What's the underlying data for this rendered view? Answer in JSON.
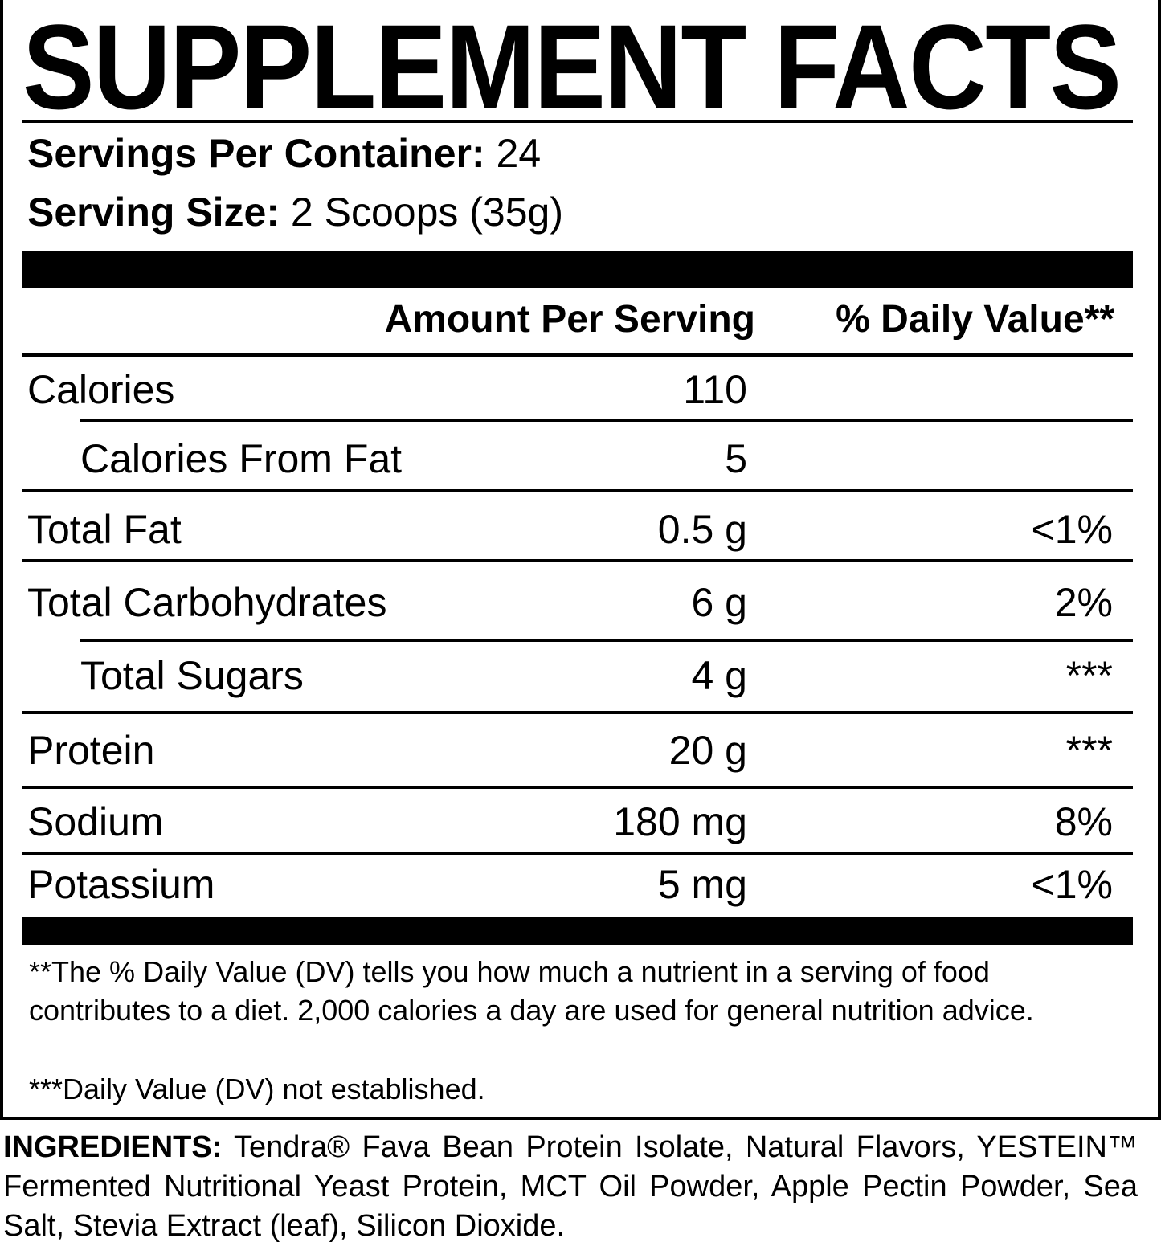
{
  "title": "SUPPLEMENT FACTS",
  "servings": {
    "per_container_label": "Servings Per Container:",
    "per_container_value": "24",
    "size_label": "Serving Size:",
    "size_value": "2 Scoops (35g)"
  },
  "header": {
    "amount": "Amount Per Serving",
    "dv": "% Daily Value**"
  },
  "rows": [
    {
      "name": "Calories",
      "amount": "110",
      "dv": ""
    },
    {
      "name": "Calories From Fat",
      "amount": "5",
      "dv": ""
    },
    {
      "name": "Total Fat",
      "amount": "0.5 g",
      "dv": "<1%"
    },
    {
      "name": "Total Carbohydrates",
      "amount": "6 g",
      "dv": "2%"
    },
    {
      "name": "Total Sugars",
      "amount": "4 g",
      "dv": "***"
    },
    {
      "name": "Protein",
      "amount": "20 g",
      "dv": "***"
    },
    {
      "name": "Sodium",
      "amount": "180 mg",
      "dv": "8%"
    },
    {
      "name": "Potassium",
      "amount": "5 mg",
      "dv": "<1%"
    }
  ],
  "footnotes": {
    "dv_note": "**The % Daily Value (DV) tells you how much a nutrient in a serving of food contributes to a diet. 2,000 calories a day are used for general nutrition advice.",
    "not_established": "***Daily Value (DV) not established."
  },
  "ingredients": {
    "label": "INGREDIENTS:",
    "text": "Tendra® Fava Bean Protein Isolate, Natural Flavors, YESTEIN™ Fermented Nutritional Yeast Protein, MCT Oil Powder, Apple Pectin Powder, Sea Salt, Stevia Extract (leaf), Silicon Dioxide."
  }
}
